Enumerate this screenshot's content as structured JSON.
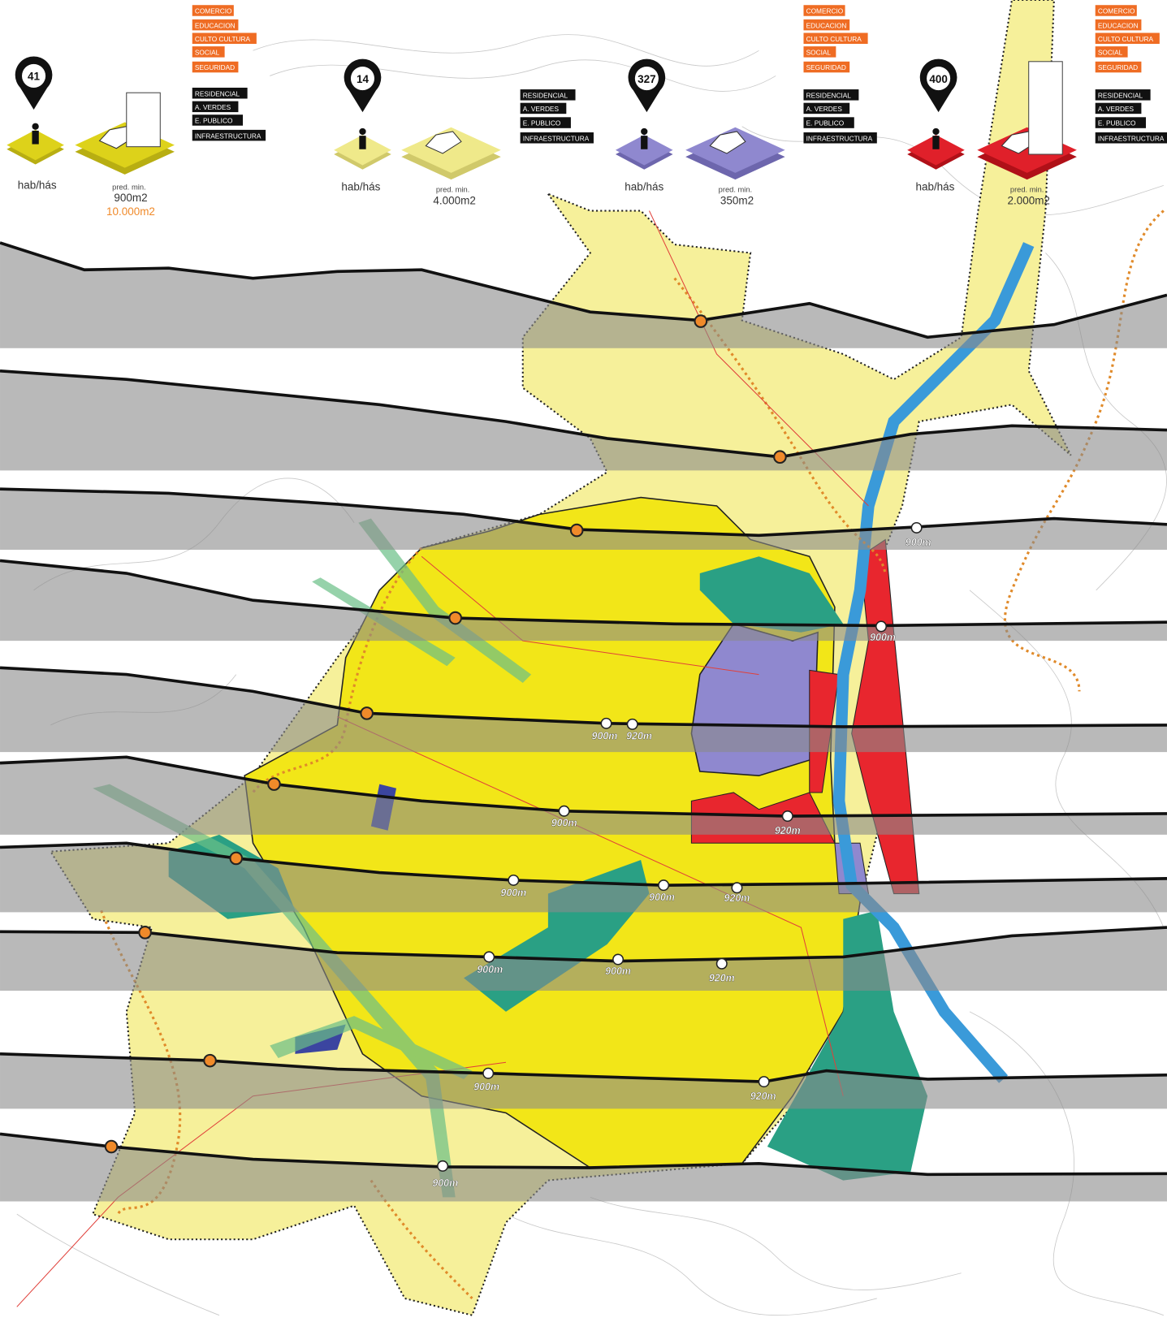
{
  "legend": [
    {
      "density": "41",
      "density_label": "hab/hás",
      "lot_label": "pred. min.",
      "lot_sizes": [
        "900m2",
        "10.000m2"
      ],
      "services": [
        "COMERCIO",
        "EDUCACION",
        "CULTO CULTURA",
        "SOCIAL",
        "SEGURIDAD"
      ],
      "uses": [
        "RESIDENCIAL",
        "A. VERDES",
        "E. PUBLICO",
        "INFRAESTRUCTURA"
      ]
    },
    {
      "density": "14",
      "density_label": "hab/hás",
      "lot_label": "pred. min.",
      "lot_sizes": [
        "4.000m2"
      ],
      "services": [],
      "uses": [
        "RESIDENCIAL",
        "A. VERDES",
        "E. PUBLICO",
        "INFRAESTRUCTURA"
      ]
    },
    {
      "density": "327",
      "density_label": "hab/hás",
      "lot_label": "pred. min.",
      "lot_sizes": [
        "350m2"
      ],
      "services": [
        "COMERCIO",
        "EDUCACION",
        "CULTO CULTURA",
        "SOCIAL",
        "SEGURIDAD"
      ],
      "uses": [
        "RESIDENCIAL",
        "A. VERDES",
        "E. PUBLICO",
        "INFRAESTRUCTURA"
      ]
    },
    {
      "density": "400",
      "density_label": "hab/hás",
      "lot_label": "pred. min.",
      "lot_sizes": [
        "2.000m2"
      ],
      "services": [
        "COMERCIO",
        "EDUCACION",
        "CULTO CULTURA",
        "SOCIAL",
        "SEGURIDAD"
      ],
      "uses": [
        "RESIDENCIAL",
        "A. VERDES",
        "E. PUBLICO",
        "INFRAESTRUCTURA"
      ]
    }
  ],
  "elevation_labels": [
    "900m",
    "900m",
    "900m",
    "920m",
    "900m",
    "920m",
    "900m",
    "900m",
    "920m",
    "900m",
    "900m",
    "920m",
    "900m",
    "920m",
    "900m"
  ]
}
